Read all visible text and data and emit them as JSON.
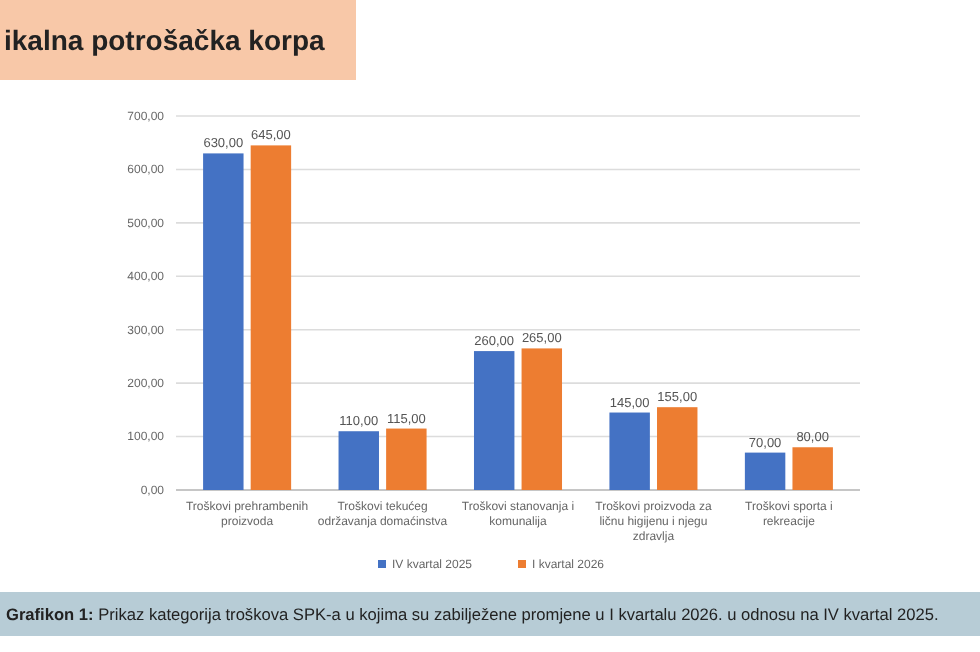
{
  "chart_data": {
    "type": "bar",
    "title": "ikalna potrošačka korpa",
    "categories": [
      "Troškovi prehrambenih proizvoda",
      "Troškovi tekućeg održavanja domaćinstva",
      "Troškovi stanovanja i komunalija",
      "Troškovi proizvoda za ličnu higijenu i njegu zdravlja",
      "Troškovi sporta i rekreacije"
    ],
    "series": [
      {
        "name": "IV kvartal 2025",
        "color": "#4472c4",
        "values": [
          630,
          110,
          260,
          145,
          70
        ],
        "value_labels": [
          "630,00",
          "110,00",
          "260,00",
          "145,00",
          "70,00"
        ]
      },
      {
        "name": "I kvartal 2026",
        "color": "#ed7d31",
        "values": [
          645,
          115,
          265,
          155,
          80
        ],
        "value_labels": [
          "645,00",
          "115,00",
          "265,00",
          "155,00",
          "80,00"
        ]
      }
    ],
    "ylim": [
      0,
      700
    ],
    "yticks": [
      {
        "value": 0,
        "label": "0,00"
      },
      {
        "value": 100,
        "label": "100,00"
      },
      {
        "value": 200,
        "label": "200,00"
      },
      {
        "value": 300,
        "label": "300,00"
      },
      {
        "value": 400,
        "label": "400,00"
      },
      {
        "value": 500,
        "label": "500,00"
      },
      {
        "value": 600,
        "label": "600,00"
      },
      {
        "value": 700,
        "label": "700,00"
      }
    ],
    "grid": "y",
    "legend": "bottom",
    "annotations": [
      "Grafikon 1: Prikaz kategorija troškova SPK-a u kojima su zabilježene promjene u I kvartalu 2026. u odnosu na IV kvartal 2025."
    ]
  }
}
